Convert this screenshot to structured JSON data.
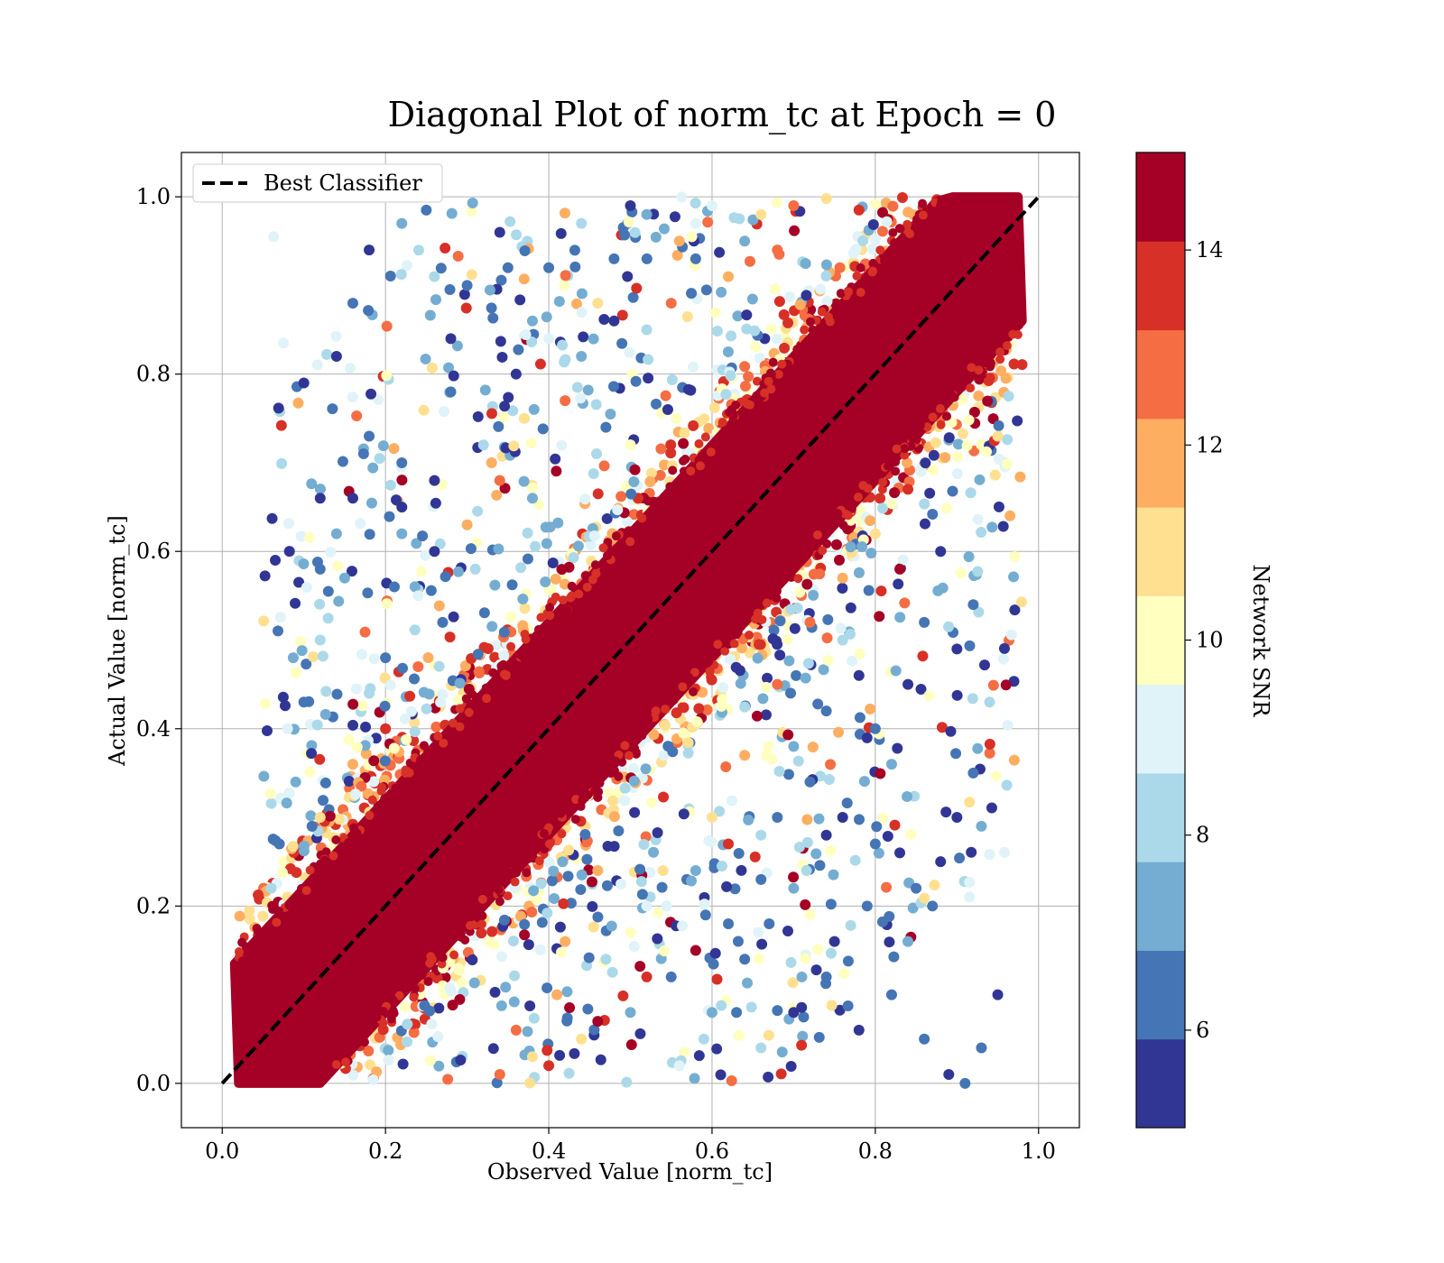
{
  "chart_data": {
    "type": "scatter",
    "title": "Diagonal Plot of norm_tc at Epoch = 0",
    "xlabel": "Observed Value [norm_tc]",
    "ylabel": "Actual Value [norm_tc]",
    "xlim": [
      -0.05,
      1.05
    ],
    "ylim": [
      -0.05,
      1.05
    ],
    "xticks": [
      "0.0",
      "0.2",
      "0.4",
      "0.6",
      "0.8",
      "1.0"
    ],
    "yticks": [
      "0.0",
      "0.2",
      "0.4",
      "0.6",
      "0.8",
      "1.0"
    ],
    "grid": true,
    "legend": {
      "placement": "upper-left",
      "entries": [
        {
          "label": "Best Classifier",
          "style": "dashed",
          "color": "#000000"
        }
      ]
    },
    "reference_line": {
      "x": [
        0,
        1
      ],
      "y": [
        0,
        1
      ]
    },
    "colorbar": {
      "label": "Network SNR",
      "range": [
        5,
        15
      ],
      "tick_values": [
        6,
        8,
        10,
        12,
        14
      ],
      "tick_labels": [
        "6",
        "8",
        "10",
        "12",
        "14"
      ],
      "colors": [
        "#313695",
        "#4575b4",
        "#74add1",
        "#abd9e9",
        "#e0f3f8",
        "#ffffbf",
        "#fee090",
        "#fdae61",
        "#f46d43",
        "#d73027",
        "#a50026"
      ]
    },
    "points": [
      [
        0.063,
        0.955,
        9.5
      ],
      [
        0.075,
        0.835,
        9.0
      ],
      [
        0.087,
        0.48,
        7.0
      ],
      [
        0.1,
        0.79,
        5.5
      ],
      [
        0.12,
        0.66,
        5.5
      ],
      [
        0.13,
        0.555,
        6.0
      ],
      [
        0.065,
        0.59,
        5.5
      ],
      [
        0.14,
        0.82,
        5.5
      ],
      [
        0.16,
        0.88,
        6.0
      ],
      [
        0.18,
        0.94,
        5.5
      ],
      [
        0.22,
        0.97,
        7.0
      ],
      [
        0.25,
        0.985,
        6.5
      ],
      [
        0.08,
        0.4,
        9.5
      ],
      [
        0.09,
        0.34,
        7.0
      ],
      [
        0.11,
        0.29,
        6.0
      ],
      [
        0.07,
        0.27,
        6.5
      ],
      [
        0.06,
        0.22,
        8.5
      ],
      [
        0.1,
        0.43,
        6.5
      ],
      [
        0.12,
        0.5,
        8.0
      ],
      [
        0.15,
        0.57,
        7.5
      ],
      [
        0.3,
        0.9,
        6.0
      ],
      [
        0.34,
        0.96,
        5.5
      ],
      [
        0.38,
        0.86,
        7.0
      ],
      [
        0.28,
        0.78,
        6.0
      ],
      [
        0.32,
        0.72,
        8.0
      ],
      [
        0.36,
        0.8,
        5.5
      ],
      [
        0.4,
        0.92,
        6.5
      ],
      [
        0.44,
        0.97,
        8.5
      ],
      [
        0.48,
        0.93,
        6.0
      ],
      [
        0.52,
        0.98,
        7.5
      ],
      [
        0.46,
        0.88,
        11.0
      ],
      [
        0.42,
        0.77,
        12.5
      ],
      [
        0.22,
        0.62,
        7.0
      ],
      [
        0.26,
        0.68,
        5.5
      ],
      [
        0.24,
        0.55,
        9.0
      ],
      [
        0.2,
        0.48,
        6.0
      ],
      [
        0.18,
        0.44,
        8.5
      ],
      [
        0.3,
        0.63,
        11.5
      ],
      [
        0.34,
        0.68,
        13.0
      ],
      [
        0.56,
        0.95,
        12.0
      ],
      [
        0.6,
        0.99,
        9.5
      ],
      [
        0.66,
        0.98,
        10.5
      ],
      [
        0.7,
        0.99,
        12.5
      ],
      [
        0.28,
        0.84,
        5.5
      ],
      [
        0.18,
        0.73,
        6.0
      ],
      [
        0.16,
        0.66,
        5.5
      ],
      [
        0.14,
        0.62,
        7.0
      ],
      [
        0.12,
        0.58,
        6.5
      ],
      [
        0.35,
        0.92,
        6.0
      ],
      [
        0.5,
        0.99,
        5.5
      ],
      [
        0.58,
        0.93,
        6.5
      ],
      [
        0.64,
        0.95,
        7.0
      ],
      [
        0.74,
        0.998,
        11.0
      ],
      [
        0.78,
        0.985,
        13.5
      ],
      [
        0.4,
        0.84,
        9.5
      ],
      [
        0.37,
        0.75,
        10.5
      ],
      [
        0.33,
        0.7,
        12.0
      ],
      [
        0.55,
        0.88,
        13.0
      ],
      [
        0.62,
        0.91,
        11.5
      ],
      [
        0.68,
        0.94,
        12.5
      ],
      [
        0.27,
        0.52,
        6.0
      ],
      [
        0.24,
        0.47,
        12.5
      ],
      [
        0.2,
        0.4,
        13.5
      ],
      [
        0.16,
        0.36,
        12.0
      ],
      [
        0.12,
        0.3,
        11.0
      ],
      [
        0.08,
        0.21,
        10.5
      ],
      [
        0.05,
        0.15,
        11.5
      ],
      [
        0.04,
        0.1,
        12.0
      ],
      [
        0.44,
        0.82,
        7.5
      ],
      [
        0.48,
        0.86,
        5.5
      ],
      [
        0.52,
        0.85,
        8.0
      ],
      [
        0.47,
        0.74,
        6.0
      ],
      [
        0.38,
        0.66,
        7.0
      ],
      [
        0.31,
        0.58,
        8.5
      ],
      [
        0.26,
        0.6,
        5.5
      ],
      [
        0.22,
        0.7,
        6.5
      ],
      [
        0.9,
        0.3,
        5.5
      ],
      [
        0.92,
        0.35,
        6.0
      ],
      [
        0.88,
        0.25,
        5.5
      ],
      [
        0.85,
        0.22,
        6.5
      ],
      [
        0.93,
        0.29,
        7.0
      ],
      [
        0.95,
        0.1,
        5.5
      ],
      [
        0.93,
        0.04,
        6.0
      ],
      [
        0.9,
        0.49,
        5.5
      ],
      [
        0.92,
        0.54,
        6.0
      ],
      [
        0.88,
        0.6,
        5.5
      ],
      [
        0.94,
        0.43,
        8.5
      ],
      [
        0.83,
        0.58,
        14.5
      ],
      [
        0.8,
        0.27,
        6.0
      ],
      [
        0.76,
        0.3,
        5.5
      ],
      [
        0.72,
        0.34,
        6.5
      ],
      [
        0.7,
        0.22,
        7.0
      ],
      [
        0.66,
        0.28,
        8.0
      ],
      [
        0.62,
        0.18,
        6.0
      ],
      [
        0.58,
        0.24,
        7.5
      ],
      [
        0.55,
        0.12,
        6.5
      ],
      [
        0.52,
        0.2,
        9.0
      ],
      [
        0.5,
        0.08,
        7.0
      ],
      [
        0.47,
        0.14,
        8.5
      ],
      [
        0.44,
        0.05,
        10.5
      ],
      [
        0.41,
        0.1,
        12.0
      ],
      [
        0.38,
        0.03,
        11.0
      ],
      [
        0.36,
        0.06,
        13.0
      ],
      [
        0.34,
        0.01,
        12.5
      ],
      [
        0.7,
        0.08,
        5.5
      ],
      [
        0.74,
        0.12,
        6.0
      ],
      [
        0.78,
        0.06,
        5.5
      ],
      [
        0.82,
        0.1,
        6.5
      ],
      [
        0.86,
        0.05,
        6.0
      ],
      [
        0.89,
        0.01,
        5.5
      ],
      [
        0.91,
        0.0,
        6.0
      ],
      [
        0.84,
        0.16,
        7.0
      ],
      [
        0.8,
        0.4,
        6.0
      ],
      [
        0.78,
        0.46,
        5.5
      ],
      [
        0.76,
        0.5,
        8.0
      ],
      [
        0.74,
        0.42,
        6.5
      ],
      [
        0.84,
        0.45,
        5.5
      ],
      [
        0.86,
        0.52,
        6.0
      ],
      [
        0.82,
        0.36,
        7.0
      ],
      [
        0.68,
        0.3,
        6.0
      ],
      [
        0.6,
        0.08,
        7.5
      ],
      [
        0.64,
        0.14,
        6.5
      ],
      [
        0.66,
        0.04,
        8.0
      ],
      [
        0.56,
        0.02,
        9.5
      ],
      [
        0.6,
        0.3,
        10.5
      ],
      [
        0.64,
        0.37,
        11.5
      ],
      [
        0.68,
        0.45,
        12.5
      ],
      [
        0.72,
        0.52,
        13.0
      ],
      [
        0.54,
        0.24,
        11.0
      ],
      [
        0.5,
        0.17,
        10.0
      ],
      [
        0.46,
        0.24,
        12.0
      ],
      [
        0.42,
        0.16,
        11.5
      ],
      [
        0.76,
        0.57,
        12.0
      ],
      [
        0.8,
        0.62,
        11.0
      ],
      [
        0.84,
        0.67,
        13.5
      ],
      [
        0.88,
        0.75,
        12.5
      ],
      [
        0.91,
        0.82,
        13.0
      ],
      [
        0.93,
        0.88,
        12.0
      ],
      [
        0.95,
        0.73,
        10.5
      ],
      [
        0.96,
        0.87,
        14.5
      ],
      [
        0.58,
        0.15,
        14.5
      ],
      [
        0.52,
        0.12,
        13.5
      ],
      [
        0.46,
        0.07,
        14.5
      ],
      [
        0.4,
        0.02,
        13.5
      ],
      [
        0.62,
        0.27,
        14.0
      ],
      [
        0.66,
        0.23,
        6.0
      ],
      [
        0.7,
        0.38,
        7.0
      ],
      [
        0.74,
        0.28,
        5.5
      ],
      [
        0.87,
        0.2,
        6.0
      ],
      [
        0.83,
        0.26,
        5.5
      ],
      [
        0.79,
        0.2,
        6.5
      ],
      [
        0.75,
        0.16,
        5.5
      ],
      [
        0.71,
        0.12,
        7.0
      ],
      [
        0.67,
        0.18,
        6.0
      ],
      [
        0.63,
        0.08,
        6.5
      ],
      [
        0.59,
        0.05,
        8.5
      ]
    ],
    "dense_band": {
      "description_value": "high SNR",
      "snr": 15,
      "lower_offset": -0.12,
      "upper_offset": 0.12
    }
  }
}
